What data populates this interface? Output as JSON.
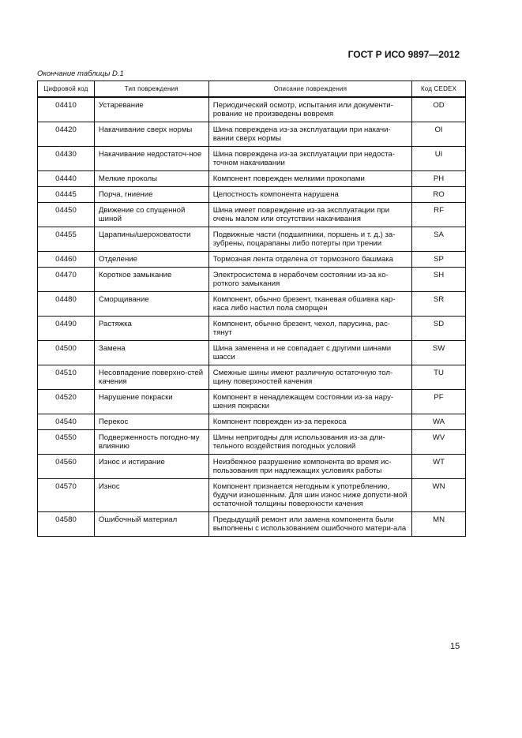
{
  "header": {
    "standard": "ГОСТ Р ИСО 9897—2012"
  },
  "caption": "Окончание таблицы D.1",
  "table": {
    "columns": [
      "Цифровой код",
      "Тип повреждения",
      "Описание повреждения",
      "Код CEDEX"
    ],
    "rows": [
      {
        "code": "04410",
        "type": "Устаревание",
        "desc": "Периодический осмотр, испытания или документи-рование не произведены вовремя",
        "cedex": "OD"
      },
      {
        "code": "04420",
        "type": "Накачивание сверх нормы",
        "desc": "Шина повреждена из-за эксплуатации при накачи-вании сверх нормы",
        "cedex": "OI"
      },
      {
        "code": "04430",
        "type": "Накачивание недостаточ-ное",
        "desc": "Шина повреждена из-за эксплуатации при недоста-точном накачивании",
        "cedex": "UI"
      },
      {
        "code": "04440",
        "type": "Мелкие проколы",
        "desc": "Компонент поврежден мелкими проколами",
        "cedex": "PH"
      },
      {
        "code": "04445",
        "type": "Порча, гниение",
        "desc": "Целостность компонента нарушена",
        "cedex": "RO"
      },
      {
        "code": "04450",
        "type": "Движение со спущенной шиной",
        "desc": "Шина имеет повреждение из-за эксплуатации при очень малом или отсутствии накачивания",
        "cedex": "RF"
      },
      {
        "code": "04455",
        "type": "Царапины/шероховатости",
        "desc": "Подвижные части (подшипники, поршень и т. д.) за-зубрены, поцарапаны либо потерты при трении",
        "cedex": "SA"
      },
      {
        "code": "04460",
        "type": "Отделение",
        "desc": "Тормозная лента отделена от тормозного башмака",
        "cedex": "SP"
      },
      {
        "code": "04470",
        "type": "Короткое замыкание",
        "desc": "Электросистема в нерабочем состоянии из-за ко-роткого замыкания",
        "cedex": "SH"
      },
      {
        "code": "04480",
        "type": "Сморщивание",
        "desc": "Компонент, обычно брезент, тканевая обшивка кар-каса либо настил пола сморщен",
        "cedex": "SR"
      },
      {
        "code": "04490",
        "type": "Растяжка",
        "desc": "Компонент, обычно брезент, чехол, парусина, рас-тянут",
        "cedex": "SD"
      },
      {
        "code": "04500",
        "type": "Замена",
        "desc": "Шина заменена и не совпадает с другими шинами шасси",
        "cedex": "SW"
      },
      {
        "code": "04510",
        "type": "Несовпадение поверхно-стей качения",
        "desc": "Смежные шины имеют различную остаточную тол-щину поверхностей качения",
        "cedex": "TU"
      },
      {
        "code": "04520",
        "type": "Нарушение покраски",
        "desc": "Компонент в ненадлежащем состоянии из-за нару-шения покраски",
        "cedex": "PF"
      },
      {
        "code": "04540",
        "type": "Перекос",
        "desc": "Компонент поврежден из-за перекоса",
        "cedex": "WA"
      },
      {
        "code": "04550",
        "type": "Подверженность погодно-му влиянию",
        "desc": "Шины непригодны для использования из-за дли-тельного воздействия погодных условий",
        "cedex": "WV"
      },
      {
        "code": "04560",
        "type": "Износ и истирание",
        "desc": "Неизбежное разрушение компонента во время ис-пользования при надлежащих условиях работы",
        "cedex": "WT"
      },
      {
        "code": "04570",
        "type": "Износ",
        "desc": "Компонент признается негодным к употреблению, будучи изношенным. Для шин износ ниже допусти-мой остаточной толщины поверхности качения",
        "cedex": "WN"
      },
      {
        "code": "04580",
        "type": "Ошибочный материал",
        "desc": "Предыдущий ремонт или замена компонента были выполнены с использованием ошибочного матери-ала",
        "cedex": "MN"
      }
    ]
  },
  "page_number": "15"
}
